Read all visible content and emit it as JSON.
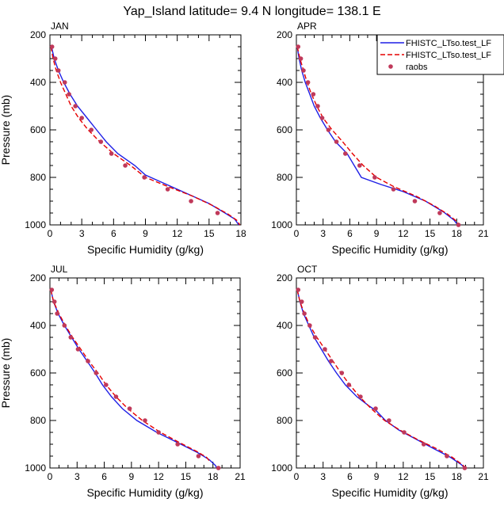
{
  "title": "Yap_Island  latitude= 9.4 N longitude= 138.1 E",
  "colors": {
    "model1": "#1f1fe6",
    "model2": "#e60000",
    "raobs": "#c0395a"
  },
  "legend": {
    "entries": [
      "FHISTC_LTso.test_LF",
      "FHISTC_LTso.test_LF",
      "raobs"
    ],
    "placement": "top-right (inside APR panel)"
  },
  "chart_data": [
    {
      "type": "line",
      "panel": "JAN",
      "title": "JAN",
      "xlabel": "Specific Humidity (g/kg)",
      "ylabel": "Pressure (mb)",
      "xlim": [
        0,
        18
      ],
      "ylim": [
        1000,
        200
      ],
      "y_inverted": true,
      "xticks": [
        0,
        3,
        6,
        9,
        12,
        15,
        18
      ],
      "yticks": [
        200,
        400,
        600,
        800,
        1000
      ],
      "series": [
        {
          "name": "FHISTC_LTso.test_LF",
          "style": "solid",
          "color": "#1f1fe6",
          "points": [
            [
              0.15,
              250
            ],
            [
              0.4,
              300
            ],
            [
              0.8,
              350
            ],
            [
              1.3,
              400
            ],
            [
              1.9,
              450
            ],
            [
              2.6,
              500
            ],
            [
              3.5,
              550
            ],
            [
              4.4,
              600
            ],
            [
              5.3,
              650
            ],
            [
              6.4,
              700
            ],
            [
              8.0,
              750
            ],
            [
              9.0,
              790
            ],
            [
              11.0,
              830
            ],
            [
              13.0,
              870
            ],
            [
              15.0,
              910
            ],
            [
              16.5,
              950
            ],
            [
              17.4,
              975
            ],
            [
              17.8,
              1000
            ]
          ]
        },
        {
          "name": "FHISTC_LTso.test_LF",
          "style": "dashed",
          "color": "#e60000",
          "points": [
            [
              0.1,
              250
            ],
            [
              0.3,
              300
            ],
            [
              0.6,
              350
            ],
            [
              1.0,
              400
            ],
            [
              1.5,
              450
            ],
            [
              2.0,
              500
            ],
            [
              2.7,
              550
            ],
            [
              3.6,
              600
            ],
            [
              4.7,
              650
            ],
            [
              6.0,
              700
            ],
            [
              7.6,
              750
            ],
            [
              9.0,
              800
            ],
            [
              11.2,
              840
            ],
            [
              13.5,
              880
            ],
            [
              15.4,
              920
            ],
            [
              16.8,
              955
            ],
            [
              17.6,
              980
            ],
            [
              17.9,
              1000
            ]
          ]
        },
        {
          "name": "raobs",
          "style": "markers",
          "color": "#c0395a",
          "points": [
            [
              0.2,
              250
            ],
            [
              0.5,
              300
            ],
            [
              0.8,
              350
            ],
            [
              1.4,
              400
            ],
            [
              1.8,
              450
            ],
            [
              2.4,
              500
            ],
            [
              3.0,
              550
            ],
            [
              3.9,
              600
            ],
            [
              4.8,
              650
            ],
            [
              5.8,
              700
            ],
            [
              7.1,
              750
            ],
            [
              8.9,
              800
            ],
            [
              11.1,
              850
            ],
            [
              13.3,
              900
            ],
            [
              15.8,
              950
            ]
          ]
        }
      ]
    },
    {
      "type": "line",
      "panel": "APR",
      "title": "APR",
      "xlabel": "Specific Humidity (g/kg)",
      "ylabel": "",
      "xlim": [
        0,
        21
      ],
      "ylim": [
        1000,
        200
      ],
      "y_inverted": true,
      "xticks": [
        0,
        3,
        6,
        9,
        12,
        15,
        18,
        21
      ],
      "yticks": [
        200,
        400,
        600,
        800,
        1000
      ],
      "series": [
        {
          "name": "FHISTC_LTso.test_LF",
          "style": "solid",
          "color": "#1f1fe6",
          "points": [
            [
              0.1,
              250
            ],
            [
              0.3,
              300
            ],
            [
              0.6,
              350
            ],
            [
              1.0,
              400
            ],
            [
              1.5,
              450
            ],
            [
              2.0,
              500
            ],
            [
              2.7,
              550
            ],
            [
              3.5,
              600
            ],
            [
              4.4,
              650
            ],
            [
              5.7,
              700
            ],
            [
              6.5,
              750
            ],
            [
              7.3,
              800
            ],
            [
              9.5,
              830
            ],
            [
              12.0,
              860
            ],
            [
              14.5,
              900
            ],
            [
              16.5,
              945
            ],
            [
              17.7,
              980
            ],
            [
              18.1,
              1000
            ]
          ]
        },
        {
          "name": "FHISTC_LTso.test_LF",
          "style": "dashed",
          "color": "#e60000",
          "points": [
            [
              0.1,
              250
            ],
            [
              0.4,
              300
            ],
            [
              0.8,
              350
            ],
            [
              1.2,
              400
            ],
            [
              1.7,
              450
            ],
            [
              2.3,
              500
            ],
            [
              3.0,
              550
            ],
            [
              4.0,
              600
            ],
            [
              5.2,
              650
            ],
            [
              6.3,
              700
            ],
            [
              7.5,
              750
            ],
            [
              9.0,
              800
            ],
            [
              11.0,
              840
            ],
            [
              13.5,
              880
            ],
            [
              15.5,
              920
            ],
            [
              17.0,
              955
            ],
            [
              18.0,
              985
            ],
            [
              18.3,
              1000
            ]
          ]
        },
        {
          "name": "raobs",
          "style": "markers",
          "color": "#c0395a",
          "points": [
            [
              0.2,
              250
            ],
            [
              0.5,
              300
            ],
            [
              0.8,
              350
            ],
            [
              1.3,
              400
            ],
            [
              1.9,
              450
            ],
            [
              2.4,
              500
            ],
            [
              2.9,
              550
            ],
            [
              3.6,
              600
            ],
            [
              4.5,
              650
            ],
            [
              5.5,
              700
            ],
            [
              7.1,
              750
            ],
            [
              8.8,
              800
            ],
            [
              10.9,
              850
            ],
            [
              13.3,
              900
            ],
            [
              16.1,
              950
            ],
            [
              18.2,
              1000
            ]
          ]
        }
      ]
    },
    {
      "type": "line",
      "panel": "JUL",
      "title": "JUL",
      "xlabel": "Specific Humidity (g/kg)",
      "ylabel": "Pressure (mb)",
      "xlim": [
        0,
        21
      ],
      "ylim": [
        1000,
        200
      ],
      "y_inverted": true,
      "xticks": [
        0,
        3,
        6,
        9,
        12,
        15,
        18,
        21
      ],
      "yticks": [
        200,
        400,
        600,
        800,
        1000
      ],
      "series": [
        {
          "name": "FHISTC_LTso.test_LF",
          "style": "solid",
          "color": "#1f1fe6",
          "points": [
            [
              0.1,
              250
            ],
            [
              0.4,
              300
            ],
            [
              0.9,
              350
            ],
            [
              1.6,
              400
            ],
            [
              2.4,
              450
            ],
            [
              3.2,
              500
            ],
            [
              4.1,
              550
            ],
            [
              5.0,
              600
            ],
            [
              5.8,
              650
            ],
            [
              6.8,
              700
            ],
            [
              8.0,
              750
            ],
            [
              9.6,
              800
            ],
            [
              11.8,
              850
            ],
            [
              14.2,
              895
            ],
            [
              16.3,
              935
            ],
            [
              17.6,
              965
            ],
            [
              18.3,
              990
            ],
            [
              18.4,
              1000
            ]
          ]
        },
        {
          "name": "FHISTC_LTso.test_LF",
          "style": "dashed",
          "color": "#e60000",
          "points": [
            [
              0.1,
              250
            ],
            [
              0.4,
              300
            ],
            [
              1.0,
              350
            ],
            [
              1.7,
              400
            ],
            [
              2.5,
              450
            ],
            [
              3.4,
              500
            ],
            [
              4.3,
              550
            ],
            [
              5.3,
              600
            ],
            [
              6.2,
              650
            ],
            [
              7.3,
              700
            ],
            [
              8.6,
              750
            ],
            [
              10.2,
              800
            ],
            [
              12.2,
              850
            ],
            [
              14.4,
              895
            ],
            [
              16.2,
              930
            ],
            [
              17.3,
              955
            ],
            [
              17.7,
              975
            ]
          ]
        },
        {
          "name": "raobs",
          "style": "markers",
          "color": "#c0395a",
          "points": [
            [
              0.2,
              250
            ],
            [
              0.5,
              300
            ],
            [
              0.8,
              350
            ],
            [
              1.6,
              400
            ],
            [
              2.3,
              450
            ],
            [
              3.1,
              500
            ],
            [
              4.2,
              550
            ],
            [
              5.1,
              600
            ],
            [
              6.2,
              650
            ],
            [
              7.3,
              700
            ],
            [
              8.8,
              750
            ],
            [
              10.5,
              800
            ],
            [
              12.0,
              850
            ],
            [
              14.1,
              900
            ],
            [
              16.4,
              950
            ],
            [
              18.6,
              1000
            ]
          ]
        }
      ]
    },
    {
      "type": "line",
      "panel": "OCT",
      "title": "OCT",
      "xlabel": "Specific Humidity (g/kg)",
      "ylabel": "",
      "xlim": [
        0,
        21
      ],
      "ylim": [
        1000,
        200
      ],
      "y_inverted": true,
      "xticks": [
        0,
        3,
        6,
        9,
        12,
        15,
        18,
        21
      ],
      "yticks": [
        200,
        400,
        600,
        800,
        1000
      ],
      "series": [
        {
          "name": "FHISTC_LTso.test_LF",
          "style": "solid",
          "color": "#1f1fe6",
          "points": [
            [
              0.1,
              250
            ],
            [
              0.4,
              300
            ],
            [
              0.8,
              350
            ],
            [
              1.4,
              400
            ],
            [
              2.0,
              450
            ],
            [
              2.8,
              500
            ],
            [
              3.6,
              550
            ],
            [
              4.5,
              600
            ],
            [
              5.5,
              650
            ],
            [
              6.8,
              700
            ],
            [
              8.2,
              740
            ],
            [
              9.0,
              760
            ],
            [
              10.0,
              800
            ],
            [
              11.5,
              840
            ],
            [
              13.5,
              880
            ],
            [
              15.5,
              920
            ],
            [
              17.3,
              955
            ],
            [
              18.5,
              985
            ],
            [
              18.9,
              1000
            ]
          ]
        },
        {
          "name": "FHISTC_LTso.test_LF",
          "style": "dashed",
          "color": "#e60000",
          "points": [
            [
              0.1,
              250
            ],
            [
              0.4,
              300
            ],
            [
              0.9,
              350
            ],
            [
              1.5,
              400
            ],
            [
              2.3,
              450
            ],
            [
              3.2,
              500
            ],
            [
              4.1,
              550
            ],
            [
              5.0,
              600
            ],
            [
              6.0,
              650
            ],
            [
              7.1,
              700
            ],
            [
              8.4,
              750
            ],
            [
              9.9,
              800
            ],
            [
              11.6,
              840
            ],
            [
              13.6,
              880
            ],
            [
              15.8,
              920
            ],
            [
              17.5,
              955
            ],
            [
              18.6,
              985
            ],
            [
              19.0,
              1000
            ]
          ]
        },
        {
          "name": "raobs",
          "style": "markers",
          "color": "#c0395a",
          "points": [
            [
              0.2,
              250
            ],
            [
              0.6,
              300
            ],
            [
              0.9,
              350
            ],
            [
              1.5,
              400
            ],
            [
              2.1,
              450
            ],
            [
              3.2,
              500
            ],
            [
              3.9,
              550
            ],
            [
              5.1,
              600
            ],
            [
              5.9,
              650
            ],
            [
              7.2,
              700
            ],
            [
              8.9,
              750
            ],
            [
              10.4,
              800
            ],
            [
              12.1,
              850
            ],
            [
              14.3,
              900
            ],
            [
              16.9,
              950
            ],
            [
              18.9,
              1000
            ]
          ]
        }
      ]
    }
  ]
}
